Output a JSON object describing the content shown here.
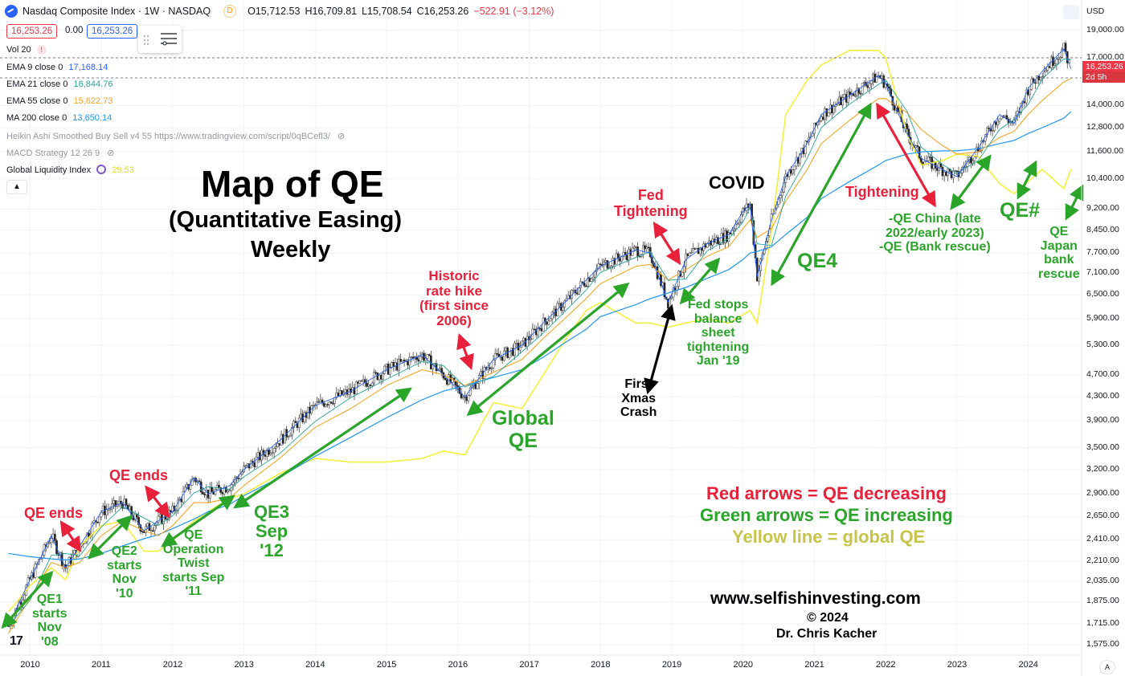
{
  "header": {
    "title": "Nasdaq Composite Index · 1W · NASDAQ",
    "badge": "D",
    "open": "O15,712.53",
    "high": "H16,709.81",
    "low": "L15,708.54",
    "close": "C16,253.26",
    "change": "−522.91 (−3.12%)"
  },
  "price_boxes": {
    "bid": "16,253.26",
    "spread": "0.00",
    "ask": "16,253.26"
  },
  "indicators": [
    {
      "label": "Vol 20",
      "value": "",
      "color": "#131722"
    },
    {
      "label": "EMA 9 close 0",
      "value": "17,168.14",
      "color": "#2962ff"
    },
    {
      "label": "EMA 21 close 0",
      "value": "16,844.76",
      "color": "#26a69a"
    },
    {
      "label": "EMA 55 close 0",
      "value": "15,622.73",
      "color": "#f5a623"
    },
    {
      "label": "MA 200 close 0",
      "value": "13,650.14",
      "color": "#2196f3"
    },
    {
      "label": "Heikin Ashi Smoothed Buy Sell v4 55 https://www.tradingview.com/script/0qBCefl3/",
      "value": "",
      "color": "#9598a1"
    },
    {
      "label": "MACD Strategy 12 26 9",
      "value": "",
      "color": "#9598a1"
    },
    {
      "label": "Global Liquidity Index",
      "value": "29.53",
      "color": "#e8d52f"
    }
  ],
  "colors": {
    "candle_up": "#444444",
    "candle_down": "#222222",
    "ema9": "#2962ff",
    "ema21": "#26a69a",
    "ema55": "#f5a623",
    "ma200": "#2196f3",
    "liquidity": "#f5ef3f",
    "red_arrow": "#e8203a",
    "green_arrow": "#2aa52a",
    "price_tag": "#f23645"
  },
  "axis": {
    "currency": "USD",
    "y_ticks": [
      "19,000.00",
      "17,000.00",
      "14,000.00",
      "12,800.00",
      "11,600.00",
      "10,400.00",
      "9,200.00",
      "8,450.00",
      "7,700.00",
      "7,100.00",
      "6,500.00",
      "5,900.00",
      "5,300.00",
      "4,700.00",
      "4,300.00",
      "3,900.00",
      "3,500.00",
      "3,200.00",
      "2,900.00",
      "2,650.00",
      "2,410.00",
      "2,210.00",
      "2,035.00",
      "1,875.00",
      "1,715.00",
      "1,575.00"
    ],
    "x_ticks": [
      "2010",
      "2011",
      "2012",
      "2013",
      "2014",
      "2015",
      "2016",
      "2017",
      "2018",
      "2019",
      "2020",
      "2021",
      "2022",
      "2023",
      "2024"
    ],
    "last_price_tag": "16,253.26",
    "countdown": "2d 5h",
    "footer_button": "A"
  },
  "chart_data": {
    "type": "line",
    "scale": "log",
    "ylim": [
      1500,
      19600
    ],
    "x": [
      2009.7,
      2010.0,
      2010.3,
      2010.5,
      2010.7,
      2011.0,
      2011.3,
      2011.6,
      2011.8,
      2012.0,
      2012.3,
      2012.5,
      2012.8,
      2013.0,
      2013.5,
      2014.0,
      2014.5,
      2015.0,
      2015.5,
      2015.8,
      2016.1,
      2016.5,
      2016.9,
      2017.2,
      2017.5,
      2017.8,
      2018.0,
      2018.5,
      2018.7,
      2018.95,
      2019.2,
      2019.5,
      2019.8,
      2020.0,
      2020.1,
      2020.2,
      2020.4,
      2020.6,
      2020.9,
      2021.1,
      2021.5,
      2021.9,
      2022.0,
      2022.3,
      2022.5,
      2022.8,
      2023.0,
      2023.3,
      2023.6,
      2023.8,
      2024.0,
      2024.2,
      2024.5,
      2024.6
    ],
    "series": [
      {
        "key": "nasdaq",
        "values": [
          1700,
          2050,
          2450,
          2150,
          2350,
          2700,
          2800,
          2500,
          2600,
          2700,
          3100,
          2900,
          3000,
          3200,
          3600,
          4150,
          4400,
          4800,
          5100,
          4700,
          4300,
          5000,
          5300,
          5800,
          6300,
          6900,
          7300,
          7800,
          7700,
          6300,
          7500,
          8000,
          8300,
          9100,
          9400,
          7000,
          8800,
          10500,
          12000,
          13500,
          14600,
          15800,
          15300,
          12500,
          11300,
          10800,
          10500,
          11800,
          13500,
          13000,
          15000,
          16100,
          17600,
          16253
        ]
      },
      {
        "key": "ema55",
        "values": [
          1650,
          1900,
          2200,
          2150,
          2200,
          2450,
          2600,
          2500,
          2450,
          2550,
          2800,
          2800,
          2850,
          3000,
          3350,
          3800,
          4100,
          4500,
          4800,
          4700,
          4500,
          4750,
          5000,
          5450,
          5900,
          6400,
          6800,
          7300,
          7350,
          6900,
          7200,
          7600,
          7900,
          8500,
          8800,
          8200,
          8500,
          9500,
          10800,
          12000,
          13200,
          14400,
          14400,
          13600,
          12700,
          11900,
          11500,
          11600,
          12300,
          12600,
          13500,
          14300,
          15400,
          15622
        ]
      },
      {
        "key": "ma200",
        "values": [
          2280,
          2250,
          2230,
          2220,
          2230,
          2280,
          2350,
          2420,
          2460,
          2520,
          2620,
          2700,
          2780,
          2880,
          3100,
          3380,
          3650,
          3950,
          4250,
          4400,
          4500,
          4650,
          4800,
          5050,
          5350,
          5650,
          5950,
          6250,
          6400,
          6550,
          6700,
          6950,
          7200,
          7500,
          7700,
          7750,
          7900,
          8300,
          8900,
          9600,
          10300,
          11000,
          11200,
          11500,
          11600,
          11650,
          11650,
          11750,
          12000,
          12150,
          12500,
          12800,
          13300,
          13650
        ]
      },
      {
        "key": "liquidity",
        "values": [
          1800,
          2000,
          2150,
          2050,
          2350,
          2550,
          2600,
          2300,
          2300,
          2400,
          2600,
          2700,
          2850,
          2900,
          3150,
          3350,
          3300,
          3300,
          3350,
          3450,
          3400,
          4200,
          4100,
          4700,
          5400,
          6100,
          6300,
          5800,
          5800,
          5700,
          5800,
          5900,
          5800,
          6000,
          6100,
          5800,
          8400,
          13500,
          15500,
          16500,
          17500,
          17500,
          17000,
          12500,
          11000,
          11200,
          11500,
          11400,
          10200,
          9800,
          10300,
          10800,
          10000,
          10800
        ]
      }
    ]
  },
  "annotations": {
    "title": "Map of QE",
    "subtitle": "(Quantitative Easing)",
    "period": "Weekly",
    "covid": "COVID",
    "fed_tightening": "Fed\nTightening",
    "historic_rate_hike": "Historic\nrate hike\n(first since\n2006)",
    "tightening": "Tightening",
    "qe_china": "-QE China (late\n2022/early 2023)\n-QE (Bank rescue)",
    "qe_hash": "QE#",
    "qe_japan": "QE\nJapan\nbank\nrescue",
    "qe4": "QE4",
    "fed_stops": "Fed stops\nbalance\nsheet\ntightening\nJan '19",
    "first_xmas_crash": "First\nXmas\nCrash",
    "global_qe": "Global\nQE",
    "qe_ends_1": "QE ends",
    "qe_ends_2": "QE ends",
    "qe2": "QE2\nstarts\nNov\n'10",
    "qe_twist": "QE\nOperation\nTwist\nstarts Sep\n'11",
    "qe3": "QE3\nSep\n'12",
    "qe1": "QE1\nstarts\nNov\n'08",
    "legend_red": "Red arrows = QE decreasing",
    "legend_green": "Green arrows = QE increasing",
    "legend_yellow": "Yellow line = global QE",
    "website": "www.selfishinvesting.com",
    "copyright": "© 2024",
    "author": "Dr. Chris Kacher"
  },
  "logo_text": "17"
}
